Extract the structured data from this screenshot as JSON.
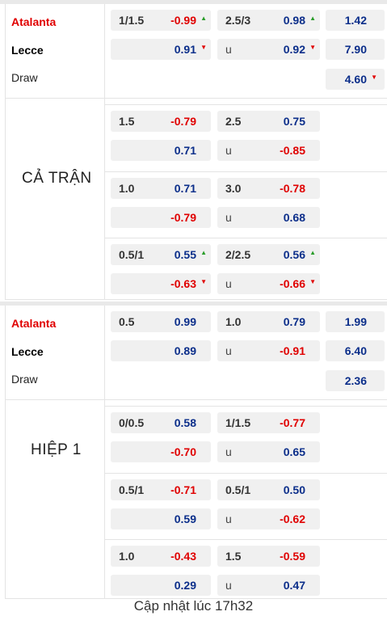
{
  "sections": [
    {
      "title": "CẢ TRẬN",
      "teams": {
        "home": "Atalanta",
        "away": "Lecce",
        "draw": "Draw"
      },
      "odds_1x2": [
        {
          "value": "1.42",
          "arrow": ""
        },
        {
          "value": "7.90",
          "arrow": ""
        },
        {
          "value": "4.60",
          "arrow": "down"
        }
      ],
      "lines": [
        {
          "hcap": "1/1.5",
          "hcap_top": "-0.99",
          "hcap_top_arrow": "up",
          "hcap_bottom": "0.91",
          "hcap_bottom_arrow": "down",
          "ou": "2.5/3",
          "ou_top": "0.98",
          "ou_top_arrow": "up",
          "ou_under_label": "u",
          "ou_bottom": "0.92",
          "ou_bottom_arrow": "down"
        },
        {
          "hcap": "1.5",
          "hcap_top": "-0.79",
          "hcap_top_arrow": "",
          "hcap_bottom": "0.71",
          "hcap_bottom_arrow": "",
          "ou": "2.5",
          "ou_top": "0.75",
          "ou_top_arrow": "",
          "ou_under_label": "u",
          "ou_bottom": "-0.85",
          "ou_bottom_arrow": ""
        },
        {
          "hcap": "1.0",
          "hcap_top": "0.71",
          "hcap_top_arrow": "",
          "hcap_bottom": "-0.79",
          "hcap_bottom_arrow": "",
          "ou": "3.0",
          "ou_top": "-0.78",
          "ou_top_arrow": "",
          "ou_under_label": "u",
          "ou_bottom": "0.68",
          "ou_bottom_arrow": ""
        },
        {
          "hcap": "0.5/1",
          "hcap_top": "0.55",
          "hcap_top_arrow": "up",
          "hcap_bottom": "-0.63",
          "hcap_bottom_arrow": "down",
          "ou": "2/2.5",
          "ou_top": "0.56",
          "ou_top_arrow": "up",
          "ou_under_label": "u",
          "ou_bottom": "-0.66",
          "ou_bottom_arrow": "down"
        }
      ]
    },
    {
      "title": "HIỆP 1",
      "teams": {
        "home": "Atalanta",
        "away": "Lecce",
        "draw": "Draw"
      },
      "odds_1x2": [
        {
          "value": "1.99",
          "arrow": ""
        },
        {
          "value": "6.40",
          "arrow": ""
        },
        {
          "value": "2.36",
          "arrow": ""
        }
      ],
      "lines": [
        {
          "hcap": "0.5",
          "hcap_top": "0.99",
          "hcap_top_arrow": "",
          "hcap_bottom": "0.89",
          "hcap_bottom_arrow": "",
          "ou": "1.0",
          "ou_top": "0.79",
          "ou_top_arrow": "",
          "ou_under_label": "u",
          "ou_bottom": "-0.91",
          "ou_bottom_arrow": ""
        },
        {
          "hcap": "0/0.5",
          "hcap_top": "0.58",
          "hcap_top_arrow": "",
          "hcap_bottom": "-0.70",
          "hcap_bottom_arrow": "",
          "ou": "1/1.5",
          "ou_top": "-0.77",
          "ou_top_arrow": "",
          "ou_under_label": "u",
          "ou_bottom": "0.65",
          "ou_bottom_arrow": ""
        },
        {
          "hcap": "0.5/1",
          "hcap_top": "-0.71",
          "hcap_top_arrow": "",
          "hcap_bottom": "0.59",
          "hcap_bottom_arrow": "",
          "ou": "0.5/1",
          "ou_top": "0.50",
          "ou_top_arrow": "",
          "ou_under_label": "u",
          "ou_bottom": "-0.62",
          "ou_bottom_arrow": ""
        },
        {
          "hcap": "1.0",
          "hcap_top": "-0.43",
          "hcap_top_arrow": "",
          "hcap_bottom": "0.29",
          "hcap_bottom_arrow": "",
          "ou": "1.5",
          "ou_top": "-0.59",
          "ou_top_arrow": "",
          "ou_under_label": "u",
          "ou_bottom": "0.47",
          "ou_bottom_arrow": ""
        }
      ]
    }
  ],
  "colors": {
    "positive": "#0b2e8a",
    "negative": "#e00000",
    "arrow_up": "#2a9d2a",
    "arrow_down": "#e00000",
    "cell_bg": "#f0f0f0"
  },
  "icons": {
    "up": "triangle-up-icon",
    "down": "triangle-down-icon"
  },
  "footer": "Cập nhật lúc 17h32"
}
